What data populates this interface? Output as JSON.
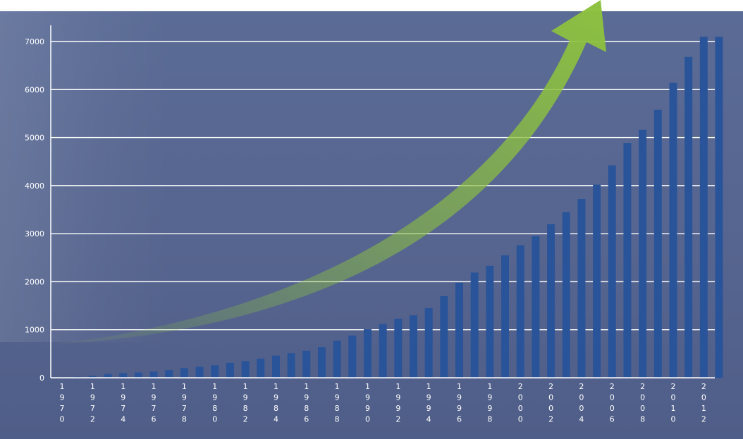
{
  "chart_data": {
    "type": "bar",
    "title": "",
    "xlabel": "",
    "ylabel": "",
    "ylim": [
      0,
      7000
    ],
    "yticks": [
      0,
      1000,
      2000,
      3000,
      4000,
      5000,
      6000,
      7000
    ],
    "grid": true,
    "categories": [
      "1970",
      "1971",
      "1972",
      "1973",
      "1974",
      "1975",
      "1976",
      "1977",
      "1978",
      "1979",
      "1980",
      "1981",
      "1982",
      "1983",
      "1984",
      "1985",
      "1986",
      "1987",
      "1988",
      "1989",
      "1990",
      "1991",
      "1992",
      "1993",
      "1994",
      "1995",
      "1996",
      "1997",
      "1998",
      "1999",
      "2000",
      "2001",
      "2002",
      "2003",
      "2004",
      "2005",
      "2006",
      "2007",
      "2008",
      "2009",
      "2010",
      "2011",
      "2012",
      "2013"
    ],
    "tick_labels": [
      "1970",
      "1972",
      "1974",
      "1976",
      "1978",
      "1980",
      "1982",
      "1984",
      "1986",
      "1988",
      "1990",
      "1992",
      "1994",
      "1996",
      "1998",
      "2000",
      "2002",
      "2004",
      "2006",
      "2008",
      "2010",
      "2012"
    ],
    "values": [
      10,
      20,
      40,
      80,
      100,
      110,
      130,
      160,
      200,
      230,
      260,
      310,
      350,
      400,
      460,
      510,
      560,
      640,
      770,
      880,
      1010,
      1120,
      1230,
      1300,
      1450,
      1700,
      1980,
      2190,
      2330,
      2550,
      2760,
      2950,
      3200,
      3450,
      3720,
      4020,
      4420,
      4890,
      5160,
      5580,
      6140,
      6680,
      7100,
      7100
    ],
    "bar_color": "#2a5499",
    "annotation": "upward-trend-arrow",
    "arrow_color": "#8dc13f"
  }
}
